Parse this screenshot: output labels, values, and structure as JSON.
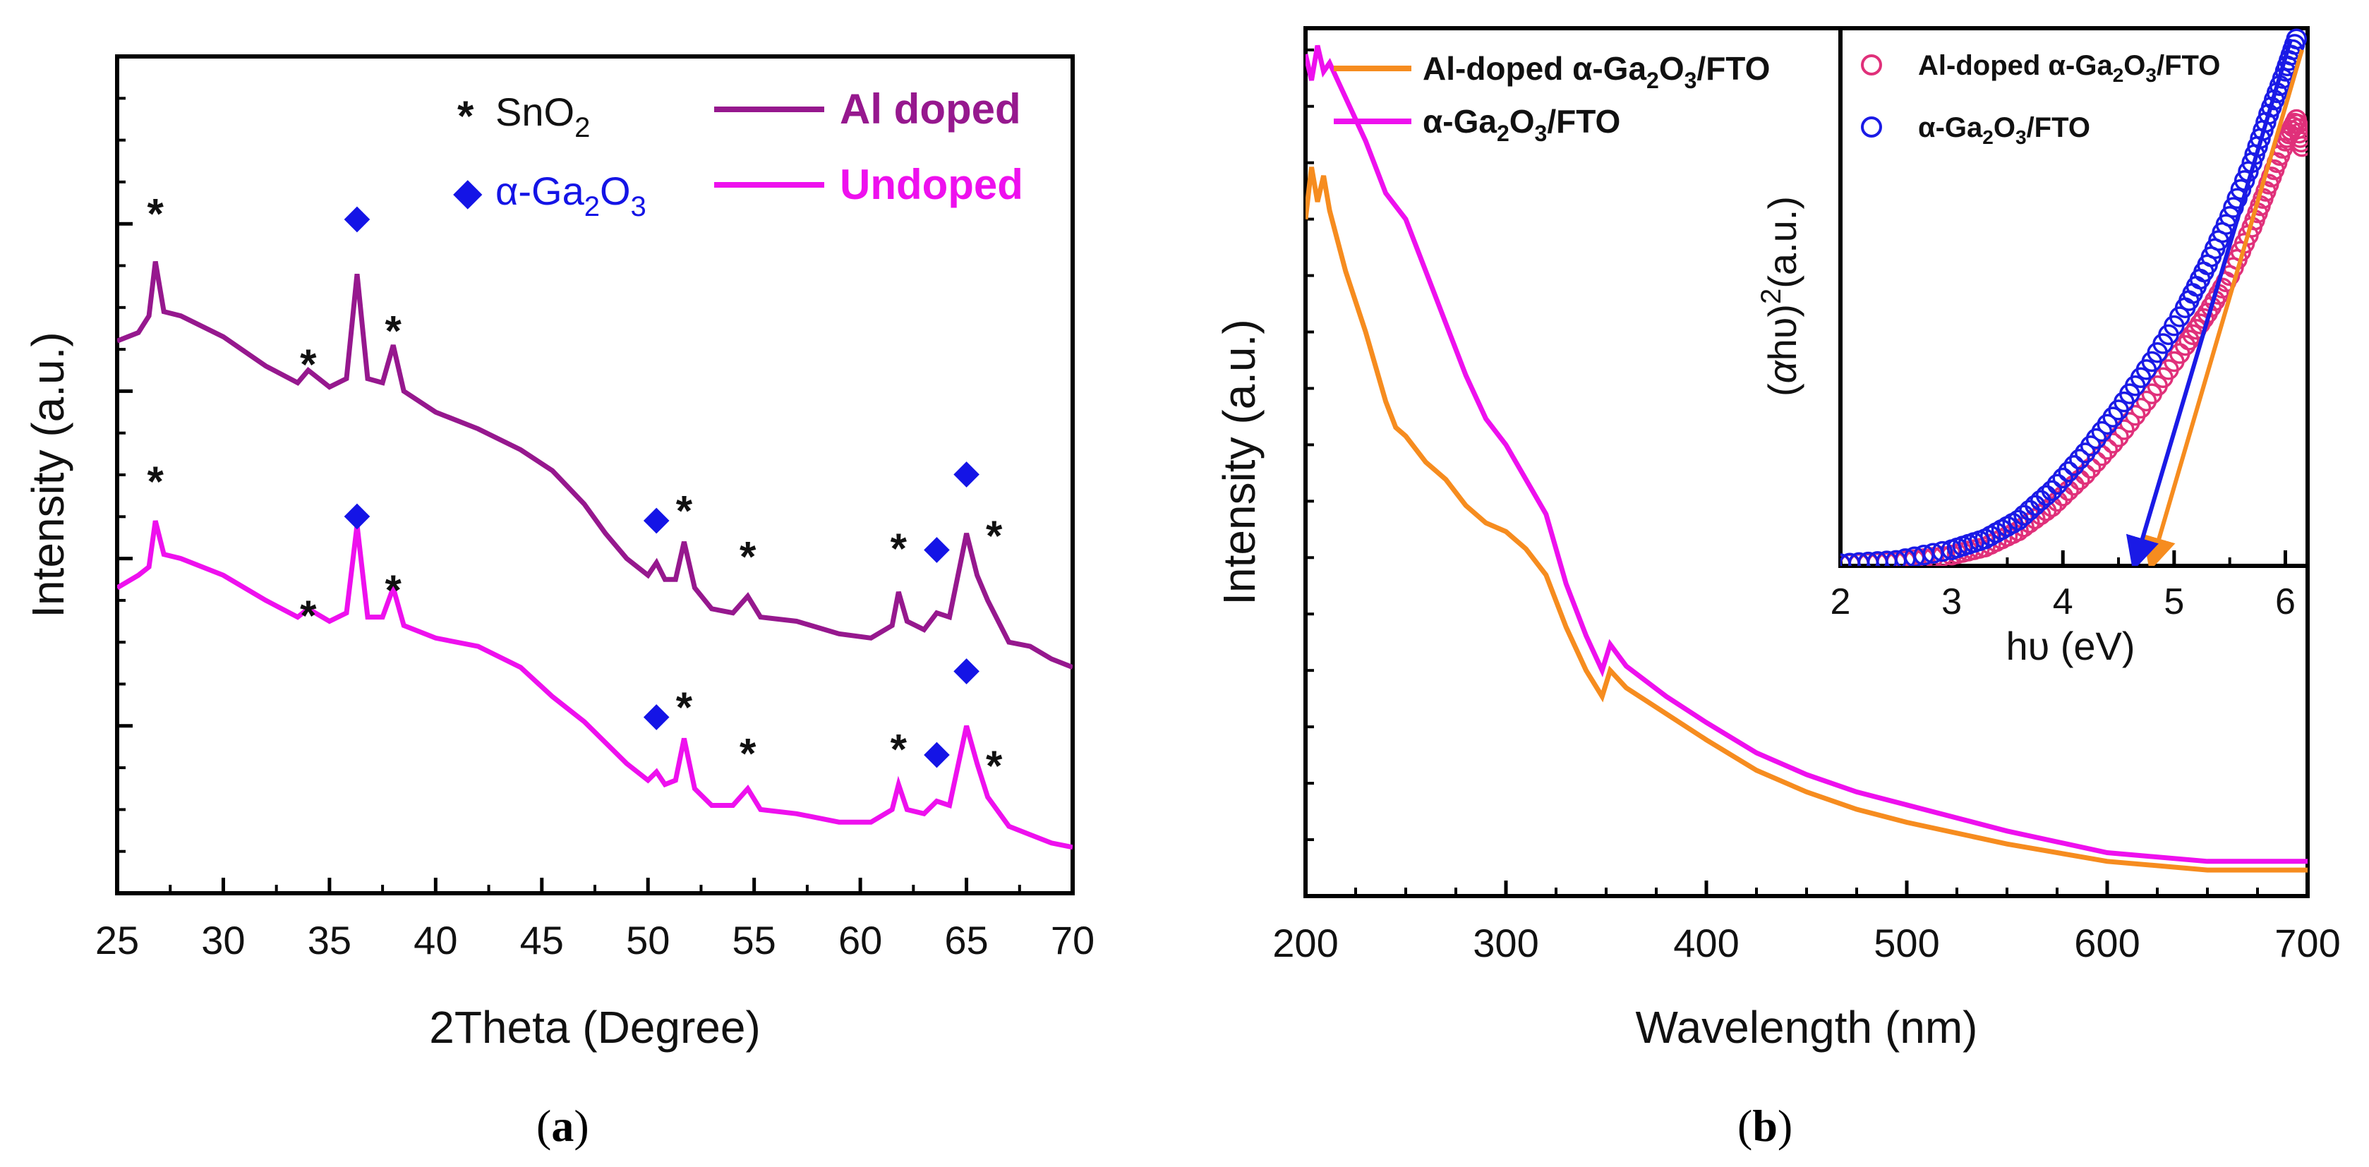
{
  "colors": {
    "al_doped_xrd": "#96188e",
    "undoped_xrd": "#ee10ee",
    "al_doped_uv": "#f68c1f",
    "undoped_uv": "#ee10ee",
    "ga2o3_marker": "#1414e6",
    "inset_al_doped": "#e0307a",
    "inset_undoped": "#1a1ae6"
  },
  "chart_data": [
    {
      "type": "line",
      "panel": "(a)",
      "panel_parts": {
        "open": "(",
        "letter": "a",
        "close": ")"
      },
      "xlabel": "2Theta (Degree)",
      "ylabel": "Intensity (a.u.)",
      "xlim": [
        25,
        70
      ],
      "x_ticks": [
        25,
        30,
        35,
        40,
        45,
        50,
        55,
        60,
        65,
        70
      ],
      "y_units": "a.u. (arbitrary, offset traces)",
      "ylim": [
        0,
        100
      ],
      "legend": {
        "marker_items": [
          {
            "symbol": "*",
            "text": "SnO",
            "sub": "2"
          },
          {
            "symbol": "◆",
            "text": "α-Ga",
            "sub": "2",
            "tail": "O",
            "sub2": "3"
          }
        ],
        "series_items": [
          "Al doped",
          "Undoped"
        ],
        "placement": "top-right"
      },
      "series": [
        {
          "name": "Al doped",
          "points": [
            [
              25,
              66
            ],
            [
              26,
              67
            ],
            [
              26.5,
              69
            ],
            [
              26.8,
              75.5
            ],
            [
              27.2,
              69.5
            ],
            [
              28,
              69
            ],
            [
              30,
              66.5
            ],
            [
              32,
              63
            ],
            [
              33.5,
              61
            ],
            [
              34,
              62.5
            ],
            [
              35,
              60.5
            ],
            [
              35.8,
              61.5
            ],
            [
              36.3,
              74
            ],
            [
              36.8,
              61.5
            ],
            [
              37.5,
              61
            ],
            [
              38,
              65.5
            ],
            [
              38.5,
              60
            ],
            [
              40,
              57.5
            ],
            [
              42,
              55.5
            ],
            [
              44,
              53
            ],
            [
              45.5,
              50.5
            ],
            [
              47,
              46.5
            ],
            [
              48,
              43
            ],
            [
              49,
              40
            ],
            [
              50,
              38
            ],
            [
              50.4,
              39.5
            ],
            [
              50.8,
              37.5
            ],
            [
              51.3,
              37.5
            ],
            [
              51.7,
              42
            ],
            [
              52.2,
              36.5
            ],
            [
              53,
              34
            ],
            [
              54,
              33.5
            ],
            [
              54.7,
              35.5
            ],
            [
              55.3,
              33
            ],
            [
              57,
              32.5
            ],
            [
              59,
              31
            ],
            [
              60.5,
              30.5
            ],
            [
              61.5,
              32
            ],
            [
              61.8,
              36
            ],
            [
              62.2,
              32.5
            ],
            [
              63,
              31.5
            ],
            [
              63.6,
              33.5
            ],
            [
              64.2,
              33
            ],
            [
              65,
              43
            ],
            [
              65.5,
              38
            ],
            [
              66,
              35
            ],
            [
              67,
              30
            ],
            [
              68,
              29.5
            ],
            [
              69,
              28
            ],
            [
              70,
              27
            ]
          ]
        },
        {
          "name": "Undoped",
          "points": [
            [
              25,
              36.5
            ],
            [
              26,
              38
            ],
            [
              26.5,
              39
            ],
            [
              26.8,
              44.5
            ],
            [
              27.2,
              40.5
            ],
            [
              28,
              40
            ],
            [
              30,
              38
            ],
            [
              32,
              35
            ],
            [
              33.5,
              33
            ],
            [
              34,
              34
            ],
            [
              35,
              32.5
            ],
            [
              35.8,
              33.5
            ],
            [
              36.3,
              44
            ],
            [
              36.8,
              33
            ],
            [
              37.5,
              33
            ],
            [
              38,
              36.5
            ],
            [
              38.5,
              32
            ],
            [
              40,
              30.5
            ],
            [
              42,
              29.5
            ],
            [
              44,
              27
            ],
            [
              45.5,
              23.5
            ],
            [
              47,
              20.5
            ],
            [
              48,
              18
            ],
            [
              49,
              15.5
            ],
            [
              50,
              13.5
            ],
            [
              50.4,
              14.5
            ],
            [
              50.8,
              13
            ],
            [
              51.3,
              13.5
            ],
            [
              51.7,
              18.5
            ],
            [
              52.2,
              12.5
            ],
            [
              53,
              10.5
            ],
            [
              54,
              10.5
            ],
            [
              54.7,
              12.5
            ],
            [
              55.3,
              10
            ],
            [
              57,
              9.5
            ],
            [
              59,
              8.5
            ],
            [
              60.5,
              8.5
            ],
            [
              61.5,
              10
            ],
            [
              61.8,
              13
            ],
            [
              62.2,
              10
            ],
            [
              63,
              9.5
            ],
            [
              63.6,
              11
            ],
            [
              64.2,
              10.5
            ],
            [
              65,
              20
            ],
            [
              65.5,
              15.5
            ],
            [
              66,
              11.5
            ],
            [
              67,
              8
            ],
            [
              68,
              7
            ],
            [
              69,
              6
            ],
            [
              70,
              5.5
            ]
          ]
        }
      ],
      "peak_markers": [
        {
          "x": 26.8,
          "y": 82,
          "kind": "SnO2",
          "symbol": "*"
        },
        {
          "x": 34.0,
          "y": 64,
          "kind": "SnO2",
          "symbol": "*"
        },
        {
          "x": 36.3,
          "y": 81,
          "kind": "Ga2O3",
          "symbol": "◆"
        },
        {
          "x": 38.0,
          "y": 68,
          "kind": "SnO2",
          "symbol": "*"
        },
        {
          "x": 50.4,
          "y": 45,
          "kind": "Ga2O3",
          "symbol": "◆"
        },
        {
          "x": 51.7,
          "y": 46.5,
          "kind": "SnO2",
          "symbol": "*"
        },
        {
          "x": 54.7,
          "y": 41,
          "kind": "SnO2",
          "symbol": "*"
        },
        {
          "x": 61.8,
          "y": 42,
          "kind": "SnO2",
          "symbol": "*"
        },
        {
          "x": 63.6,
          "y": 41.5,
          "kind": "Ga2O3",
          "symbol": "◆"
        },
        {
          "x": 65.0,
          "y": 50.5,
          "kind": "Ga2O3",
          "symbol": "◆"
        },
        {
          "x": 66.3,
          "y": 43.5,
          "kind": "SnO2",
          "symbol": "*"
        },
        {
          "x": 26.8,
          "y": 50,
          "kind": "SnO2",
          "symbol": "*"
        },
        {
          "x": 34.0,
          "y": 34,
          "kind": "SnO2",
          "symbol": "*"
        },
        {
          "x": 36.3,
          "y": 45.5,
          "kind": "Ga2O3",
          "symbol": "◆"
        },
        {
          "x": 38.0,
          "y": 37,
          "kind": "SnO2",
          "symbol": "*"
        },
        {
          "x": 50.4,
          "y": 21.5,
          "kind": "Ga2O3",
          "symbol": "◆"
        },
        {
          "x": 51.7,
          "y": 23,
          "kind": "SnO2",
          "symbol": "*"
        },
        {
          "x": 54.7,
          "y": 17.5,
          "kind": "SnO2",
          "symbol": "*"
        },
        {
          "x": 61.8,
          "y": 18,
          "kind": "SnO2",
          "symbol": "*"
        },
        {
          "x": 63.6,
          "y": 17,
          "kind": "Ga2O3",
          "symbol": "◆"
        },
        {
          "x": 65.0,
          "y": 27,
          "kind": "Ga2O3",
          "symbol": "◆"
        },
        {
          "x": 66.3,
          "y": 16,
          "kind": "SnO2",
          "symbol": "*"
        }
      ]
    },
    {
      "type": "line",
      "panel": "(b)",
      "panel_parts": {
        "open": "(",
        "letter": "b",
        "close": ")"
      },
      "xlabel": "Wavelength (nm)",
      "ylabel": "Intensity (a.u.)",
      "xlim": [
        200,
        700
      ],
      "x_ticks": [
        200,
        300,
        400,
        500,
        600,
        700
      ],
      "ylim": [
        0,
        100
      ],
      "legend": {
        "items": [
          {
            "name": "Al-doped α-Ga2O3/FTO",
            "pre": "Al-doped α-Ga",
            "s1": "2",
            "mid": "O",
            "s2": "3",
            "post": "/FTO"
          },
          {
            "name": "α-Ga2O3/FTO",
            "pre": "α-Ga",
            "s1": "2",
            "mid": "O",
            "s2": "3",
            "post": "/FTO"
          }
        ],
        "placement": "top-left"
      },
      "series": [
        {
          "name": "Al-doped α-Ga2O3/FTO",
          "points": [
            [
              200,
              78
            ],
            [
              203,
              84
            ],
            [
              206,
              80
            ],
            [
              209,
              83
            ],
            [
              212,
              79
            ],
            [
              220,
              72
            ],
            [
              230,
              65
            ],
            [
              240,
              57
            ],
            [
              245,
              54
            ],
            [
              250,
              53
            ],
            [
              260,
              50
            ],
            [
              270,
              48
            ],
            [
              280,
              45
            ],
            [
              290,
              43
            ],
            [
              300,
              42
            ],
            [
              310,
              40
            ],
            [
              320,
              37
            ],
            [
              330,
              31
            ],
            [
              340,
              26
            ],
            [
              348,
              23
            ],
            [
              352,
              26
            ],
            [
              360,
              24
            ],
            [
              380,
              21
            ],
            [
              400,
              18
            ],
            [
              425,
              14.5
            ],
            [
              450,
              12
            ],
            [
              475,
              10
            ],
            [
              500,
              8.5
            ],
            [
              550,
              6
            ],
            [
              600,
              4
            ],
            [
              650,
              3
            ],
            [
              700,
              3
            ]
          ]
        },
        {
          "name": "α-Ga2O3/FTO",
          "points": [
            [
              200,
              97
            ],
            [
              203,
              94
            ],
            [
              206,
              98
            ],
            [
              209,
              95
            ],
            [
              212,
              96
            ],
            [
              220,
              92
            ],
            [
              230,
              87
            ],
            [
              240,
              81
            ],
            [
              250,
              78
            ],
            [
              260,
              72
            ],
            [
              270,
              66
            ],
            [
              280,
              60
            ],
            [
              290,
              55
            ],
            [
              300,
              52
            ],
            [
              310,
              48
            ],
            [
              320,
              44
            ],
            [
              330,
              36
            ],
            [
              340,
              30
            ],
            [
              348,
              26
            ],
            [
              352,
              29
            ],
            [
              360,
              26.5
            ],
            [
              380,
              23
            ],
            [
              400,
              20
            ],
            [
              425,
              16.5
            ],
            [
              450,
              14
            ],
            [
              475,
              12
            ],
            [
              500,
              10.5
            ],
            [
              550,
              7.5
            ],
            [
              600,
              5
            ],
            [
              650,
              4
            ],
            [
              700,
              4
            ]
          ]
        }
      ],
      "inset": {
        "type": "scatter",
        "xlabel": "hυ (eV)",
        "ylabel_parts": {
          "open": "(",
          "alpha": "α",
          "hv": "hυ",
          "close": ")",
          "sup": "2",
          "tail": "(a.u.)"
        },
        "xlim": [
          2,
          6.2
        ],
        "ylim": [
          0,
          100
        ],
        "x_ticks": [
          2,
          3,
          4,
          5,
          6
        ],
        "legend": {
          "items": [
            {
              "name": "Al-doped α-Ga2O3/FTO",
              "pre": "Al-doped α-Ga",
              "s1": "2",
              "mid": "O",
              "s2": "3",
              "post": "/FTO"
            },
            {
              "name": "α-Ga2O3/FTO",
              "pre": "α-Ga",
              "s1": "2",
              "mid": "O",
              "s2": "3",
              "post": "/FTO"
            }
          ],
          "placement": "top-left"
        },
        "series": [
          {
            "name": "Al-doped α-Ga2O3/FTO",
            "marker": "open-circle",
            "points": [
              [
                2,
                0.3
              ],
              [
                2.5,
                0.7
              ],
              [
                3,
                2
              ],
              [
                3.3,
                3.5
              ],
              [
                3.6,
                6.5
              ],
              [
                3.9,
                11
              ],
              [
                4.2,
                17
              ],
              [
                4.5,
                24
              ],
              [
                4.8,
                32
              ],
              [
                5.1,
                41
              ],
              [
                5.3,
                47
              ],
              [
                5.5,
                54
              ],
              [
                5.7,
                63
              ],
              [
                5.85,
                71
              ],
              [
                6,
                79
              ],
              [
                6.1,
                83
              ],
              [
                6.15,
                78
              ]
            ]
          },
          {
            "name": "α-Ga2O3/FTO",
            "marker": "open-circle",
            "points": [
              [
                2,
                0.4
              ],
              [
                2.5,
                1
              ],
              [
                3,
                3
              ],
              [
                3.3,
                5
              ],
              [
                3.6,
                8.5
              ],
              [
                3.9,
                14
              ],
              [
                4.2,
                21
              ],
              [
                4.5,
                29
              ],
              [
                4.8,
                38
              ],
              [
                5.1,
                48
              ],
              [
                5.3,
                56
              ],
              [
                5.5,
                65
              ],
              [
                5.7,
                75
              ],
              [
                5.85,
                84
              ],
              [
                6,
                92
              ],
              [
                6.1,
                98
              ]
            ]
          }
        ],
        "tauc_fits": [
          {
            "series": "Al-doped α-Ga2O3/FTO",
            "band_gap_ev": 4.8,
            "from": [
              6.15,
              96
            ]
          },
          {
            "series": "α-Ga2O3/FTO",
            "band_gap_ev": 4.65,
            "from": [
              6.05,
              98
            ]
          }
        ]
      }
    }
  ]
}
